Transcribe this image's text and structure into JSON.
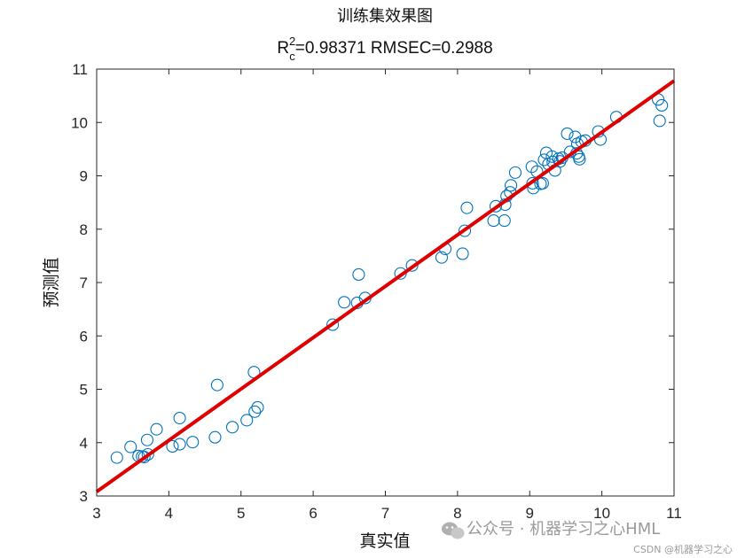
{
  "chart_data": {
    "type": "scatter",
    "title": "训练集效果图",
    "subtitle_parts": {
      "r": "R",
      "sup": "2",
      "sub": "c",
      "rest": "=0.98371  RMSEC=0.2988"
    },
    "xlabel": "真实值",
    "ylabel": "预测值",
    "xlim": [
      3,
      11
    ],
    "ylim": [
      3,
      11
    ],
    "xticks": [
      "3",
      "4",
      "5",
      "6",
      "7",
      "8",
      "9",
      "10",
      "11"
    ],
    "yticks": [
      "3",
      "4",
      "5",
      "6",
      "7",
      "8",
      "9",
      "10",
      "11"
    ],
    "grid": false,
    "legend": "none",
    "marker": "open-circle",
    "marker_color": "#0072BD",
    "fit_line": {
      "color": "#E00000",
      "x": [
        3,
        11
      ],
      "y": [
        3.08,
        10.78
      ]
    },
    "points": [
      [
        3.28,
        3.72
      ],
      [
        3.47,
        3.92
      ],
      [
        3.58,
        3.75
      ],
      [
        3.63,
        3.74
      ],
      [
        3.66,
        3.73
      ],
      [
        3.71,
        3.78
      ],
      [
        3.7,
        4.05
      ],
      [
        3.83,
        4.25
      ],
      [
        4.05,
        3.93
      ],
      [
        4.15,
        3.97
      ],
      [
        4.15,
        4.46
      ],
      [
        4.33,
        4.01
      ],
      [
        4.64,
        4.1
      ],
      [
        4.67,
        5.08
      ],
      [
        4.88,
        4.29
      ],
      [
        5.08,
        4.42
      ],
      [
        5.19,
        4.58
      ],
      [
        5.23,
        4.66
      ],
      [
        5.18,
        5.32
      ],
      [
        6.27,
        6.21
      ],
      [
        6.43,
        6.63
      ],
      [
        6.61,
        6.62
      ],
      [
        6.63,
        7.15
      ],
      [
        6.72,
        6.71
      ],
      [
        7.21,
        7.17
      ],
      [
        7.37,
        7.32
      ],
      [
        7.78,
        7.47
      ],
      [
        7.83,
        7.63
      ],
      [
        8.07,
        7.54
      ],
      [
        8.1,
        7.97
      ],
      [
        8.13,
        8.4
      ],
      [
        8.5,
        8.16
      ],
      [
        8.53,
        8.43
      ],
      [
        8.65,
        8.16
      ],
      [
        8.66,
        8.46
      ],
      [
        8.68,
        8.62
      ],
      [
        8.73,
        8.69
      ],
      [
        8.74,
        8.82
      ],
      [
        8.8,
        9.06
      ],
      [
        9.03,
        9.17
      ],
      [
        9.05,
        8.77
      ],
      [
        9.04,
        8.86
      ],
      [
        9.1,
        9.08
      ],
      [
        9.15,
        8.85
      ],
      [
        9.18,
        8.86
      ],
      [
        9.2,
        9.3
      ],
      [
        9.23,
        9.43
      ],
      [
        9.26,
        9.22
      ],
      [
        9.31,
        9.36
      ],
      [
        9.32,
        9.26
      ],
      [
        9.35,
        9.1
      ],
      [
        9.4,
        9.32
      ],
      [
        9.42,
        9.27
      ],
      [
        9.45,
        9.34
      ],
      [
        9.52,
        9.79
      ],
      [
        9.56,
        9.45
      ],
      [
        9.63,
        9.73
      ],
      [
        9.65,
        9.42
      ],
      [
        9.66,
        9.6
      ],
      [
        9.68,
        9.36
      ],
      [
        9.69,
        9.31
      ],
      [
        9.72,
        9.64
      ],
      [
        9.77,
        9.66
      ],
      [
        9.95,
        9.83
      ],
      [
        9.98,
        9.68
      ],
      [
        10.2,
        10.1
      ],
      [
        10.78,
        10.43
      ],
      [
        10.8,
        10.03
      ],
      [
        10.83,
        10.32
      ]
    ]
  },
  "watermark": {
    "main": "公众号 · 机器学习之心HML",
    "small": "CSDN @机器学习之心"
  }
}
